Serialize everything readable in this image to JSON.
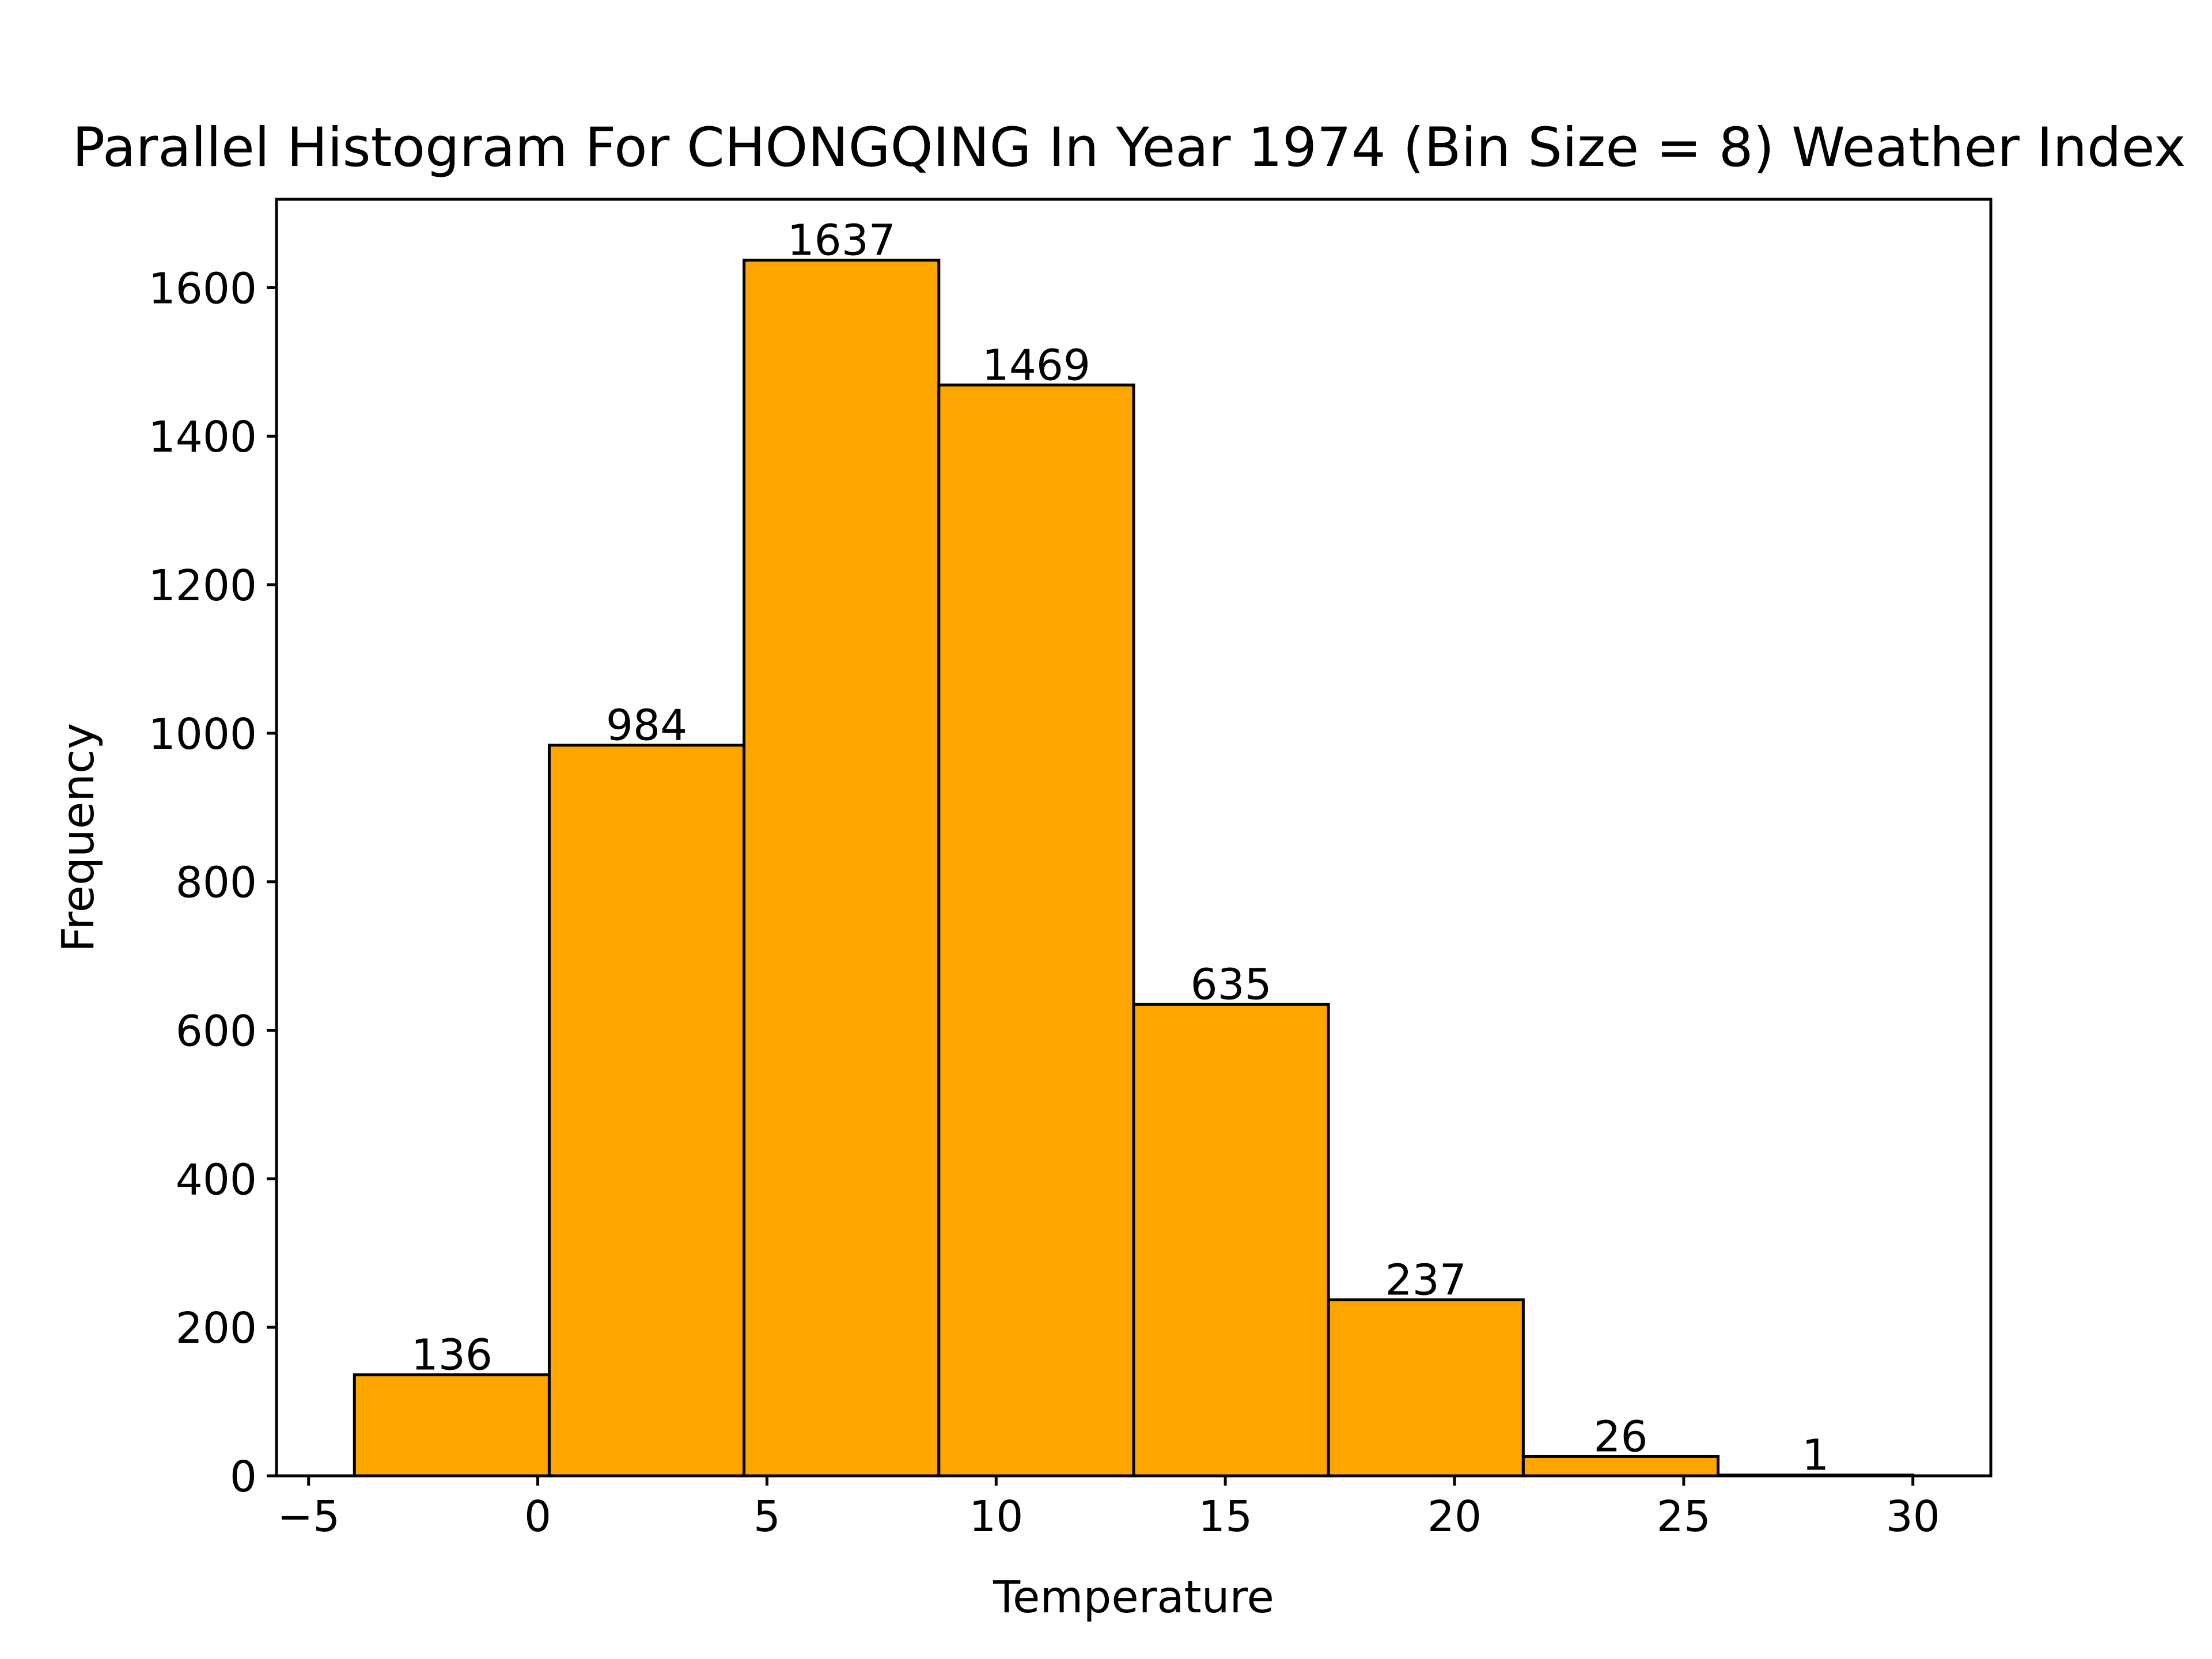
{
  "chart_data": {
    "type": "bar",
    "title": "Parallel Histogram For CHONGQING In Year 1974 (Bin Size = 8) Weather Index",
    "xlabel": "Temperature",
    "ylabel": "Frequency",
    "bin_edges": [
      -4.0,
      0.25,
      4.5,
      8.75,
      13.0,
      17.25,
      21.5,
      25.75,
      30.0
    ],
    "values": [
      136,
      984,
      1637,
      1469,
      635,
      237,
      26,
      1
    ],
    "value_labels": [
      "136",
      "984",
      "1637",
      "1469",
      "635",
      "237",
      "26",
      "1"
    ],
    "xlim": [
      -5.7,
      31.7
    ],
    "ylim": [
      0,
      1719
    ],
    "xticks": [
      -5,
      0,
      5,
      10,
      15,
      20,
      25,
      30
    ],
    "xtick_labels": [
      "−5",
      "0",
      "5",
      "10",
      "15",
      "20",
      "25",
      "30"
    ],
    "yticks": [
      0,
      200,
      400,
      600,
      800,
      1000,
      1200,
      1400,
      1600
    ],
    "ytick_labels": [
      "0",
      "200",
      "400",
      "600",
      "800",
      "1000",
      "1200",
      "1400",
      "1600"
    ],
    "bar_color": "#FFA500",
    "edge_color": "#000000",
    "grid": false,
    "legend": "none"
  }
}
